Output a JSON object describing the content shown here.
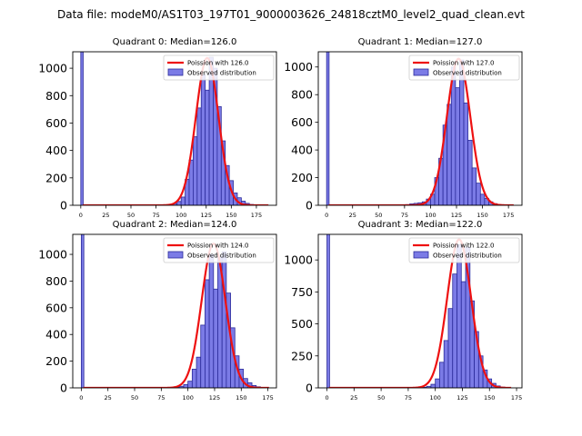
{
  "figure": {
    "title": "Data file: modeM0/AS1T03_197T01_9000003626_24818cztM0_level2_quad_clean.evt"
  },
  "colors": {
    "bar_fill": "#7b7be6",
    "bar_edge": "#2b2b9a",
    "poisson_line": "#ee1111",
    "axis": "#000000"
  },
  "chart_data": [
    {
      "type": "bar",
      "title": "Quadrant 0: Median=126.0",
      "median": 126.0,
      "xlim": [
        -8,
        195
      ],
      "ylim": [
        0,
        1120
      ],
      "xticks": [
        0,
        25,
        50,
        75,
        100,
        125,
        150,
        175
      ],
      "yticks": [
        0,
        200,
        400,
        600,
        800,
        1000
      ],
      "bin_width": 4,
      "zero_bin": {
        "x": 0,
        "value": 1120
      },
      "bins": [
        {
          "x": 88,
          "value": 5
        },
        {
          "x": 92,
          "value": 12
        },
        {
          "x": 96,
          "value": 28
        },
        {
          "x": 100,
          "value": 60
        },
        {
          "x": 104,
          "value": 190
        },
        {
          "x": 108,
          "value": 330
        },
        {
          "x": 112,
          "value": 500
        },
        {
          "x": 116,
          "value": 710
        },
        {
          "x": 120,
          "value": 950
        },
        {
          "x": 124,
          "value": 840
        },
        {
          "x": 128,
          "value": 1080
        },
        {
          "x": 132,
          "value": 1000
        },
        {
          "x": 136,
          "value": 720
        },
        {
          "x": 140,
          "value": 470
        },
        {
          "x": 144,
          "value": 290
        },
        {
          "x": 148,
          "value": 180
        },
        {
          "x": 152,
          "value": 90
        },
        {
          "x": 156,
          "value": 55
        },
        {
          "x": 160,
          "value": 30
        },
        {
          "x": 164,
          "value": 14
        },
        {
          "x": 168,
          "value": 6
        }
      ],
      "curve": {
        "mean": 126.0,
        "peak": 1075,
        "x_range": [
          2,
          187
        ]
      },
      "legend": {
        "position": "upper right",
        "line_label": "Poission with 126.0",
        "bar_label": "Observed distribution"
      }
    },
    {
      "type": "bar",
      "title": "Quadrant 1: Median=127.0",
      "median": 127.0,
      "xlim": [
        -8,
        188
      ],
      "ylim": [
        0,
        1110
      ],
      "xticks": [
        0,
        25,
        50,
        75,
        100,
        125,
        150,
        175
      ],
      "yticks": [
        0,
        200,
        400,
        600,
        800,
        1000
      ],
      "bin_width": 4,
      "zero_bin": {
        "x": 0,
        "value": 1110
      },
      "bins": [
        {
          "x": 76,
          "value": 5
        },
        {
          "x": 80,
          "value": 10
        },
        {
          "x": 84,
          "value": 14
        },
        {
          "x": 88,
          "value": 18
        },
        {
          "x": 92,
          "value": 25
        },
        {
          "x": 96,
          "value": 45
        },
        {
          "x": 100,
          "value": 80
        },
        {
          "x": 104,
          "value": 200
        },
        {
          "x": 108,
          "value": 340
        },
        {
          "x": 112,
          "value": 580
        },
        {
          "x": 116,
          "value": 730
        },
        {
          "x": 120,
          "value": 1000
        },
        {
          "x": 124,
          "value": 850
        },
        {
          "x": 128,
          "value": 1050
        },
        {
          "x": 132,
          "value": 740
        },
        {
          "x": 136,
          "value": 470
        },
        {
          "x": 140,
          "value": 270
        },
        {
          "x": 144,
          "value": 160
        },
        {
          "x": 148,
          "value": 80
        },
        {
          "x": 152,
          "value": 50
        },
        {
          "x": 156,
          "value": 25
        },
        {
          "x": 160,
          "value": 12
        },
        {
          "x": 164,
          "value": 5
        }
      ],
      "curve": {
        "mean": 127.0,
        "peak": 1060,
        "x_range": [
          2,
          180
        ]
      },
      "legend": {
        "position": "upper right",
        "line_label": "Poission with 127.0",
        "bar_label": "Observed distribution"
      }
    },
    {
      "type": "bar",
      "title": "Quadrant 2: Median=124.0",
      "median": 124.0,
      "xlim": [
        -8,
        183
      ],
      "ylim": [
        0,
        1150
      ],
      "xticks": [
        0,
        25,
        50,
        75,
        100,
        125,
        150,
        175
      ],
      "yticks": [
        0,
        200,
        400,
        600,
        800,
        1000
      ],
      "bin_width": 4,
      "zero_bin": {
        "x": 0,
        "value": 1150
      },
      "bins": [
        {
          "x": 88,
          "value": 5
        },
        {
          "x": 92,
          "value": 12
        },
        {
          "x": 96,
          "value": 25
        },
        {
          "x": 100,
          "value": 50
        },
        {
          "x": 104,
          "value": 140
        },
        {
          "x": 108,
          "value": 230
        },
        {
          "x": 112,
          "value": 470
        },
        {
          "x": 116,
          "value": 810
        },
        {
          "x": 120,
          "value": 1000
        },
        {
          "x": 124,
          "value": 740
        },
        {
          "x": 128,
          "value": 980
        },
        {
          "x": 132,
          "value": 1020
        },
        {
          "x": 136,
          "value": 710
        },
        {
          "x": 140,
          "value": 450
        },
        {
          "x": 144,
          "value": 240
        },
        {
          "x": 148,
          "value": 140
        },
        {
          "x": 152,
          "value": 70
        },
        {
          "x": 156,
          "value": 38
        },
        {
          "x": 160,
          "value": 18
        },
        {
          "x": 164,
          "value": 8
        }
      ],
      "curve": {
        "mean": 124.0,
        "peak": 1080,
        "x_range": [
          2,
          176
        ]
      },
      "legend": {
        "position": "upper right",
        "line_label": "Poission with 124.0",
        "bar_label": "Observed distribution"
      }
    },
    {
      "type": "bar",
      "title": "Quadrant 3: Median=122.0",
      "median": 122.0,
      "xlim": [
        -8,
        180
      ],
      "ylim": [
        0,
        1200
      ],
      "xticks": [
        0,
        25,
        50,
        75,
        100,
        125,
        150,
        175
      ],
      "yticks": [
        0,
        250,
        500,
        750,
        1000
      ],
      "bin_width": 4,
      "zero_bin": {
        "x": 0,
        "value": 1200
      },
      "bins": [
        {
          "x": 88,
          "value": 5
        },
        {
          "x": 92,
          "value": 12
        },
        {
          "x": 96,
          "value": 28
        },
        {
          "x": 100,
          "value": 70
        },
        {
          "x": 104,
          "value": 200
        },
        {
          "x": 108,
          "value": 370
        },
        {
          "x": 112,
          "value": 620
        },
        {
          "x": 116,
          "value": 890
        },
        {
          "x": 120,
          "value": 1120
        },
        {
          "x": 124,
          "value": 830
        },
        {
          "x": 128,
          "value": 1100
        },
        {
          "x": 132,
          "value": 680
        },
        {
          "x": 136,
          "value": 440
        },
        {
          "x": 140,
          "value": 250
        },
        {
          "x": 144,
          "value": 140
        },
        {
          "x": 148,
          "value": 70
        },
        {
          "x": 152,
          "value": 35
        },
        {
          "x": 156,
          "value": 15
        },
        {
          "x": 160,
          "value": 6
        }
      ],
      "curve": {
        "mean": 122.0,
        "peak": 1160,
        "x_range": [
          2,
          170
        ]
      },
      "legend": {
        "position": "upper right",
        "line_label": "Poission with 122.0",
        "bar_label": "Observed distribution"
      }
    }
  ]
}
